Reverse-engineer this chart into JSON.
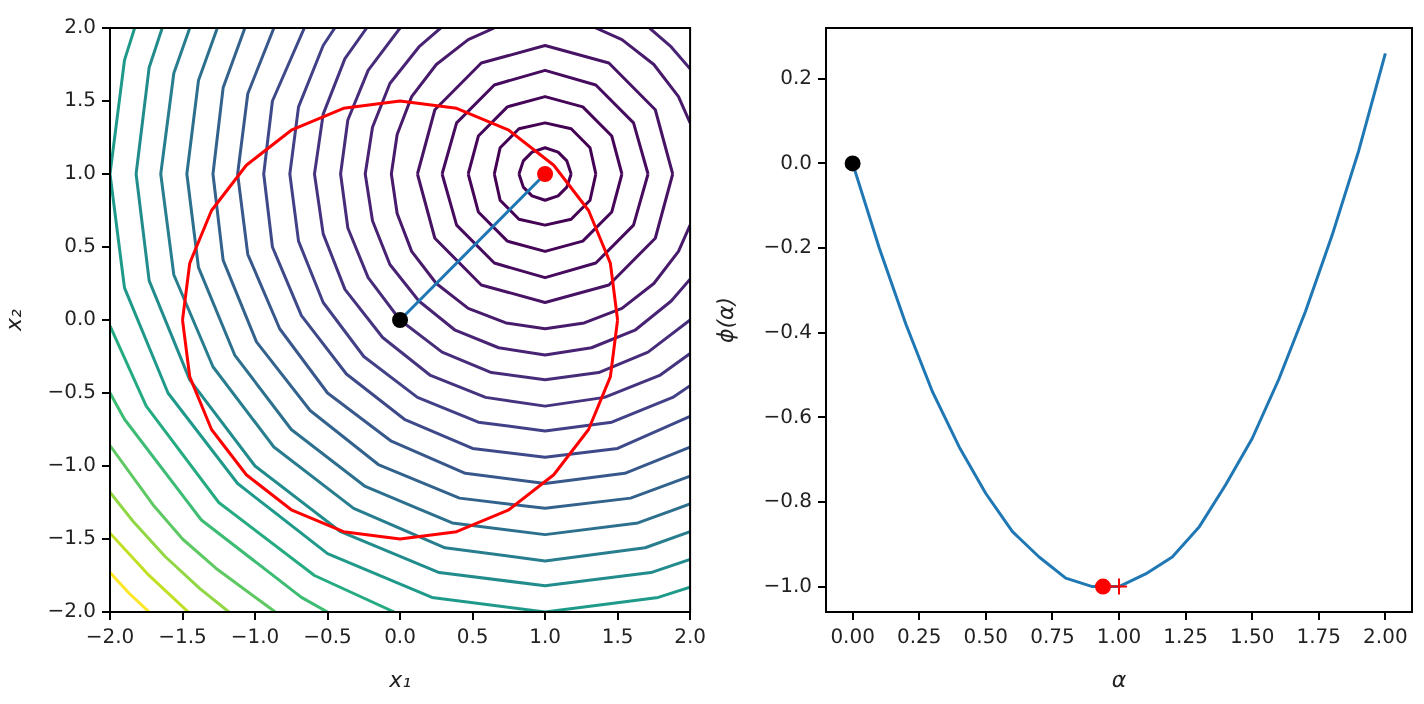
{
  "chart_data": [
    {
      "type": "line",
      "xlabel": "x₁",
      "ylabel": "x₂",
      "xlim": [
        -2,
        2
      ],
      "ylim": [
        -2,
        2
      ],
      "xticks": [
        {
          "value": -2,
          "label": "−2.0"
        },
        {
          "value": -1.5,
          "label": "−1.5"
        },
        {
          "value": -1,
          "label": "−1.0"
        },
        {
          "value": -0.5,
          "label": "−0.5"
        },
        {
          "value": 0,
          "label": "0.0"
        },
        {
          "value": 0.5,
          "label": "0.5"
        },
        {
          "value": 1,
          "label": "1.0"
        },
        {
          "value": 1.5,
          "label": "1.5"
        },
        {
          "value": 2,
          "label": "2.0"
        }
      ],
      "yticks": [
        {
          "value": -2,
          "label": "−2.0"
        },
        {
          "value": -1.5,
          "label": "−1.5"
        },
        {
          "value": -1,
          "label": "−1.0"
        },
        {
          "value": -0.5,
          "label": "−0.5"
        },
        {
          "value": 0,
          "label": "0.0"
        },
        {
          "value": 0.5,
          "label": "0.5"
        },
        {
          "value": 1,
          "label": "1.0"
        },
        {
          "value": 1.5,
          "label": "1.5"
        },
        {
          "value": 2,
          "label": "2.0"
        }
      ],
      "grid": false,
      "legend": false,
      "marker": "none",
      "series": [
        {
          "color": "#440154",
          "x": [
            1.18,
            1.15,
            1.09,
            1,
            0.91,
            0.85,
            0.82,
            null,
            0.82,
            0.85,
            0.91,
            1,
            1.09,
            1.15,
            1.18
          ],
          "values": [
            1,
            1.09,
            1.15,
            1.18,
            1.15,
            1.09,
            1,
            null,
            1,
            0.91,
            0.85,
            0.82,
            0.85,
            0.91,
            1
          ]
        },
        {
          "color": "#440154",
          "x": [
            1.35,
            1.31,
            1.18,
            1,
            0.82,
            0.69,
            0.65,
            null,
            0.65,
            0.69,
            0.82,
            1,
            1.18,
            1.31,
            1.35
          ],
          "values": [
            1,
            1.18,
            1.31,
            1.35,
            1.31,
            1.18,
            1,
            null,
            1,
            0.82,
            0.69,
            0.65,
            0.69,
            0.82,
            1
          ]
        },
        {
          "color": "#450559",
          "x": [
            1.53,
            1.46,
            1.26,
            1,
            0.74,
            0.54,
            0.47,
            null,
            0.47,
            0.54,
            0.74,
            1,
            1.26,
            1.46,
            1.53
          ],
          "values": [
            1,
            1.26,
            1.46,
            1.53,
            1.46,
            1.26,
            1,
            null,
            1,
            0.74,
            0.54,
            0.47,
            0.54,
            0.74,
            1
          ]
        },
        {
          "color": "#460b5e",
          "x": [
            1.71,
            1.61,
            1.35,
            1,
            0.65,
            0.39,
            0.29,
            null,
            0.29,
            0.39,
            0.65,
            1,
            1.35,
            1.61,
            1.71
          ],
          "values": [
            1,
            1.35,
            1.61,
            1.71,
            1.61,
            1.35,
            1,
            null,
            1,
            0.65,
            0.39,
            0.29,
            0.39,
            0.65,
            1
          ]
        },
        {
          "color": "#471365",
          "x": [
            1.88,
            1.76,
            1.44,
            1,
            0.56,
            0.24,
            0.12,
            null,
            0.12,
            0.24,
            0.56,
            1,
            1.44,
            1.76,
            1.88
          ],
          "values": [
            1,
            1.44,
            1.76,
            1.88,
            1.76,
            1.44,
            1,
            null,
            1,
            0.56,
            0.24,
            0.12,
            0.24,
            0.56,
            1
          ]
        },
        {
          "color": "#481a6c",
          "x": [
            0.65,
            0.47,
            0.25,
            0.08,
            -0.02,
            -0.06,
            -0.02,
            0.08,
            0.25,
            0.47,
            0.73,
            1,
            1.27,
            1.53,
            1.75,
            1.92,
            2,
            null,
            2,
            1.92,
            1.75,
            1.53,
            1.35
          ],
          "values": [
            2,
            1.92,
            1.75,
            1.53,
            1.27,
            1,
            0.73,
            0.47,
            0.25,
            0.08,
            -0.02,
            -0.06,
            -0.02,
            0.08,
            0.25,
            0.47,
            0.65,
            null,
            1.35,
            1.53,
            1.75,
            1.92,
            2
          ]
        },
        {
          "color": "#482374",
          "x": [
            0.28,
            0.13,
            -0.07,
            -0.19,
            -0.24,
            -0.19,
            -0.07,
            0.13,
            0.38,
            0.68,
            1,
            1.32,
            1.62,
            1.87,
            2,
            null,
            2,
            1.87,
            1.72
          ],
          "values": [
            2,
            1.87,
            1.62,
            1.32,
            1,
            0.68,
            0.38,
            0.13,
            -0.07,
            -0.19,
            -0.24,
            -0.19,
            -0.07,
            0.13,
            0.28,
            null,
            1.72,
            1.87,
            2
          ]
        },
        {
          "color": "#472c7a",
          "x": [
            0,
            -0.22,
            -0.36,
            -0.41,
            -0.36,
            -0.22,
            0,
            0.29,
            0.63,
            1,
            1.37,
            1.71,
            2
          ],
          "values": [
            2,
            1.71,
            1.37,
            1,
            0.63,
            0.29,
            0,
            -0.22,
            -0.36,
            -0.41,
            -0.36,
            -0.22,
            0
          ]
        },
        {
          "color": "#46337f",
          "x": [
            -0.23,
            -0.38,
            -0.53,
            -0.59,
            -0.53,
            -0.38,
            -0.12,
            0.21,
            0.59,
            1,
            1.41,
            1.79,
            2
          ],
          "values": [
            2,
            1.79,
            1.41,
            1,
            0.59,
            0.21,
            -0.12,
            -0.38,
            -0.53,
            -0.59,
            -0.53,
            -0.38,
            -0.23
          ]
        },
        {
          "color": "#424086",
          "x": [
            -0.45,
            -0.53,
            -0.7,
            -0.76,
            -0.7,
            -0.53,
            -0.25,
            0.12,
            0.54,
            1,
            1.46,
            1.88,
            2
          ],
          "values": [
            2,
            1.88,
            1.46,
            1,
            0.54,
            0.12,
            -0.25,
            -0.53,
            -0.7,
            -0.76,
            -0.7,
            -0.53,
            -0.45
          ]
        },
        {
          "color": "#3e4989",
          "x": [
            -0.66,
            -0.88,
            -0.94,
            -0.88,
            -0.68,
            -0.37,
            0.03,
            0.5,
            1,
            1.5,
            2
          ],
          "values": [
            2,
            1.5,
            1,
            0.5,
            0.03,
            -0.37,
            -0.68,
            -0.88,
            -0.94,
            -0.88,
            -0.66
          ]
        },
        {
          "color": "#38588c",
          "x": [
            -0.87,
            -1.05,
            -1.12,
            -1.05,
            -0.83,
            -0.5,
            -0.06,
            0.45,
            1,
            1.55,
            2
          ],
          "values": [
            2,
            1.55,
            1,
            0.45,
            -0.06,
            -0.5,
            -0.83,
            -1.05,
            -1.12,
            -1.05,
            -0.87
          ]
        },
        {
          "color": "#33638d",
          "x": [
            -1.07,
            -1.22,
            -1.29,
            -1.22,
            -0.99,
            -0.62,
            -0.15,
            0.41,
            1,
            1.59,
            2
          ],
          "values": [
            2,
            1.59,
            1,
            0.41,
            -0.15,
            -0.62,
            -0.99,
            -1.22,
            -1.29,
            -1.22,
            -1.07
          ]
        },
        {
          "color": "#2d708e",
          "x": [
            -1.26,
            -1.39,
            -1.47,
            -1.39,
            -1.14,
            -0.75,
            -0.24,
            0.36,
            1,
            1.64,
            2
          ],
          "values": [
            2,
            1.64,
            1,
            0.36,
            -0.24,
            -0.75,
            -1.14,
            -1.39,
            -1.47,
            -1.39,
            -1.26
          ]
        },
        {
          "color": "#287d8e",
          "x": [
            -1.45,
            -1.56,
            -1.65,
            -1.56,
            -1.29,
            -0.87,
            -0.32,
            0.31,
            1,
            1.69,
            2
          ],
          "values": [
            2,
            1.69,
            1,
            0.31,
            -0.32,
            -0.87,
            -1.29,
            -1.56,
            -1.65,
            -1.56,
            -1.45
          ]
        },
        {
          "color": "#228c8d",
          "x": [
            -1.64,
            -1.73,
            -1.82,
            -1.73,
            -1.45,
            -1,
            -0.41,
            0.27,
            1,
            1.73,
            2
          ],
          "values": [
            2,
            1.73,
            1,
            0.27,
            -0.41,
            -1,
            -1.45,
            -1.73,
            -1.82,
            -1.73,
            -1.64
          ]
        },
        {
          "color": "#1f9a8a",
          "x": [
            -1.83,
            -1.9,
            -2,
            -1.9,
            -1.6,
            -1.12,
            -0.5,
            0.22,
            1,
            1.78,
            2
          ],
          "values": [
            2,
            1.78,
            1,
            0.22,
            -0.5,
            -1.12,
            -1.6,
            -1.9,
            -2,
            -1.9,
            -1.83
          ]
        },
        {
          "color": "#25ab82",
          "x": [
            -2,
            -1.75,
            -1.25,
            -0.59,
            -0.04
          ],
          "values": [
            -0.04,
            -0.59,
            -1.25,
            -1.75,
            -2
          ]
        },
        {
          "color": "#3dbc74",
          "x": [
            -2,
            -1.9,
            -1.37,
            -0.68,
            -0.5
          ],
          "values": [
            -0.5,
            -0.68,
            -1.37,
            -1.9,
            -2
          ]
        },
        {
          "color": "#5ec962",
          "x": [
            -2,
            -1.7,
            -1.5,
            -1.27,
            -0.86
          ],
          "values": [
            -0.86,
            -1.27,
            -1.5,
            -1.7,
            -2
          ]
        },
        {
          "color": "#90d743",
          "x": [
            -2,
            -1.84,
            -1.62,
            -1.38,
            -1.18
          ],
          "values": [
            -1.18,
            -1.38,
            -1.62,
            -1.84,
            -2
          ]
        },
        {
          "color": "#c2df23",
          "x": [
            -2,
            -1.74,
            -1.46
          ],
          "values": [
            -1.46,
            -1.74,
            -2
          ]
        },
        {
          "color": "#fde725",
          "x": [
            -2,
            -1.87,
            -1.73
          ],
          "values": [
            -1.73,
            -1.87,
            -2
          ]
        },
        {
          "color": "#ff0000",
          "x": [
            1.5,
            1.45,
            1.3,
            1.06,
            0.75,
            0.39,
            0,
            -0.39,
            -0.75,
            -1.06,
            -1.3,
            -1.45,
            -1.5,
            null,
            -1.5,
            -1.45,
            -1.3,
            -1.06,
            -0.75,
            -0.39,
            0,
            0.39,
            0.75,
            1.06,
            1.3,
            1.45,
            1.5
          ],
          "values": [
            0,
            0.39,
            0.75,
            1.06,
            1.3,
            1.45,
            1.5,
            1.45,
            1.3,
            1.06,
            0.75,
            0.39,
            0,
            null,
            0,
            -0.39,
            -0.75,
            -1.06,
            -1.3,
            -1.45,
            -1.5,
            -1.45,
            -1.3,
            -1.06,
            -0.75,
            -0.39,
            0
          ]
        },
        {
          "color": "#1f77b4",
          "x": [
            0,
            1
          ],
          "values": [
            0,
            1
          ]
        },
        {
          "type": "scatter",
          "marker": "circle",
          "color": "#000000",
          "x": [
            0
          ],
          "values": [
            0
          ]
        },
        {
          "type": "scatter",
          "marker": "circle",
          "color": "#ff0000",
          "x": [
            1
          ],
          "values": [
            1
          ]
        }
      ]
    },
    {
      "type": "line",
      "xlabel": "α",
      "ylabel": "ϕ(α)",
      "xlim": [
        -0.1,
        2.1
      ],
      "ylim": [
        -1.06,
        0.32
      ],
      "xticks": [
        {
          "value": 0,
          "label": "0.00"
        },
        {
          "value": 0.25,
          "label": "0.25"
        },
        {
          "value": 0.5,
          "label": "0.50"
        },
        {
          "value": 0.75,
          "label": "0.75"
        },
        {
          "value": 1,
          "label": "1.00"
        },
        {
          "value": 1.25,
          "label": "1.25"
        },
        {
          "value": 1.5,
          "label": "1.50"
        },
        {
          "value": 1.75,
          "label": "1.75"
        },
        {
          "value": 2,
          "label": "2.00"
        }
      ],
      "yticks": [
        {
          "value": -1,
          "label": "−1.0"
        },
        {
          "value": -0.8,
          "label": "−0.8"
        },
        {
          "value": -0.6,
          "label": "−0.6"
        },
        {
          "value": -0.4,
          "label": "−0.4"
        },
        {
          "value": -0.2,
          "label": "−0.2"
        },
        {
          "value": 0,
          "label": "0.0"
        },
        {
          "value": 0.2,
          "label": "0.2"
        }
      ],
      "grid": false,
      "legend": false,
      "marker": "none",
      "series": [
        {
          "color": "#1f77b4",
          "x": [
            0,
            0.1,
            0.2,
            0.3,
            0.4,
            0.5,
            0.6,
            0.7,
            0.8,
            0.9,
            1,
            1.1,
            1.2,
            1.3,
            1.4,
            1.5,
            1.6,
            1.7,
            1.8,
            1.9,
            2
          ],
          "values": [
            0,
            -0.2,
            -0.38,
            -0.54,
            -0.67,
            -0.78,
            -0.87,
            -0.93,
            -0.98,
            -1,
            -1,
            -0.97,
            -0.93,
            -0.86,
            -0.76,
            -0.65,
            -0.51,
            -0.35,
            -0.17,
            0.03,
            0.26
          ]
        },
        {
          "type": "scatter",
          "marker": "circle",
          "color": "#000000",
          "x": [
            0
          ],
          "values": [
            0
          ]
        },
        {
          "type": "scatter",
          "marker": "circle",
          "color": "#ff0000",
          "x": [
            0.94
          ],
          "values": [
            -1
          ]
        },
        {
          "type": "scatter",
          "marker": "cross",
          "color": "#ff0000",
          "x": [
            1
          ],
          "values": [
            -1
          ]
        }
      ]
    }
  ]
}
